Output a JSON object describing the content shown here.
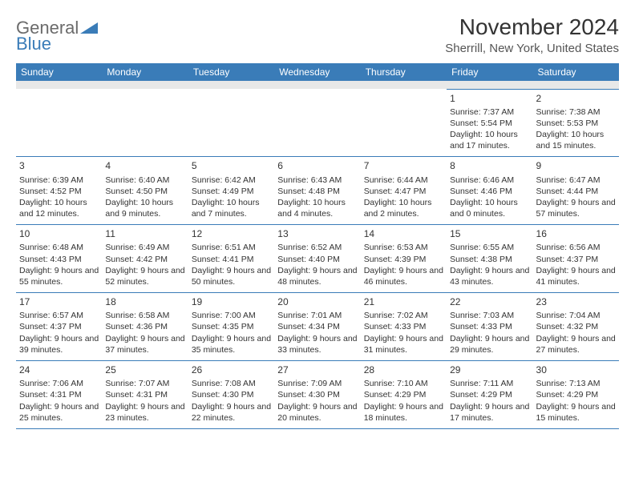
{
  "logo": {
    "word1": "General",
    "word2": "Blue"
  },
  "title": "November 2024",
  "location": "Sherrill, New York, United States",
  "colors": {
    "headerBg": "#3a7cb8",
    "headerText": "#ffffff",
    "spacerBg": "#e8e8e8",
    "text": "#333333",
    "borderColor": "#3a7cb8"
  },
  "dayHeaders": [
    "Sunday",
    "Monday",
    "Tuesday",
    "Wednesday",
    "Thursday",
    "Friday",
    "Saturday"
  ],
  "weeks": [
    [
      null,
      null,
      null,
      null,
      null,
      {
        "n": "1",
        "sr": "Sunrise: 7:37 AM",
        "ss": "Sunset: 5:54 PM",
        "dl": "Daylight: 10 hours and 17 minutes."
      },
      {
        "n": "2",
        "sr": "Sunrise: 7:38 AM",
        "ss": "Sunset: 5:53 PM",
        "dl": "Daylight: 10 hours and 15 minutes."
      }
    ],
    [
      {
        "n": "3",
        "sr": "Sunrise: 6:39 AM",
        "ss": "Sunset: 4:52 PM",
        "dl": "Daylight: 10 hours and 12 minutes."
      },
      {
        "n": "4",
        "sr": "Sunrise: 6:40 AM",
        "ss": "Sunset: 4:50 PM",
        "dl": "Daylight: 10 hours and 9 minutes."
      },
      {
        "n": "5",
        "sr": "Sunrise: 6:42 AM",
        "ss": "Sunset: 4:49 PM",
        "dl": "Daylight: 10 hours and 7 minutes."
      },
      {
        "n": "6",
        "sr": "Sunrise: 6:43 AM",
        "ss": "Sunset: 4:48 PM",
        "dl": "Daylight: 10 hours and 4 minutes."
      },
      {
        "n": "7",
        "sr": "Sunrise: 6:44 AM",
        "ss": "Sunset: 4:47 PM",
        "dl": "Daylight: 10 hours and 2 minutes."
      },
      {
        "n": "8",
        "sr": "Sunrise: 6:46 AM",
        "ss": "Sunset: 4:46 PM",
        "dl": "Daylight: 10 hours and 0 minutes."
      },
      {
        "n": "9",
        "sr": "Sunrise: 6:47 AM",
        "ss": "Sunset: 4:44 PM",
        "dl": "Daylight: 9 hours and 57 minutes."
      }
    ],
    [
      {
        "n": "10",
        "sr": "Sunrise: 6:48 AM",
        "ss": "Sunset: 4:43 PM",
        "dl": "Daylight: 9 hours and 55 minutes."
      },
      {
        "n": "11",
        "sr": "Sunrise: 6:49 AM",
        "ss": "Sunset: 4:42 PM",
        "dl": "Daylight: 9 hours and 52 minutes."
      },
      {
        "n": "12",
        "sr": "Sunrise: 6:51 AM",
        "ss": "Sunset: 4:41 PM",
        "dl": "Daylight: 9 hours and 50 minutes."
      },
      {
        "n": "13",
        "sr": "Sunrise: 6:52 AM",
        "ss": "Sunset: 4:40 PM",
        "dl": "Daylight: 9 hours and 48 minutes."
      },
      {
        "n": "14",
        "sr": "Sunrise: 6:53 AM",
        "ss": "Sunset: 4:39 PM",
        "dl": "Daylight: 9 hours and 46 minutes."
      },
      {
        "n": "15",
        "sr": "Sunrise: 6:55 AM",
        "ss": "Sunset: 4:38 PM",
        "dl": "Daylight: 9 hours and 43 minutes."
      },
      {
        "n": "16",
        "sr": "Sunrise: 6:56 AM",
        "ss": "Sunset: 4:37 PM",
        "dl": "Daylight: 9 hours and 41 minutes."
      }
    ],
    [
      {
        "n": "17",
        "sr": "Sunrise: 6:57 AM",
        "ss": "Sunset: 4:37 PM",
        "dl": "Daylight: 9 hours and 39 minutes."
      },
      {
        "n": "18",
        "sr": "Sunrise: 6:58 AM",
        "ss": "Sunset: 4:36 PM",
        "dl": "Daylight: 9 hours and 37 minutes."
      },
      {
        "n": "19",
        "sr": "Sunrise: 7:00 AM",
        "ss": "Sunset: 4:35 PM",
        "dl": "Daylight: 9 hours and 35 minutes."
      },
      {
        "n": "20",
        "sr": "Sunrise: 7:01 AM",
        "ss": "Sunset: 4:34 PM",
        "dl": "Daylight: 9 hours and 33 minutes."
      },
      {
        "n": "21",
        "sr": "Sunrise: 7:02 AM",
        "ss": "Sunset: 4:33 PM",
        "dl": "Daylight: 9 hours and 31 minutes."
      },
      {
        "n": "22",
        "sr": "Sunrise: 7:03 AM",
        "ss": "Sunset: 4:33 PM",
        "dl": "Daylight: 9 hours and 29 minutes."
      },
      {
        "n": "23",
        "sr": "Sunrise: 7:04 AM",
        "ss": "Sunset: 4:32 PM",
        "dl": "Daylight: 9 hours and 27 minutes."
      }
    ],
    [
      {
        "n": "24",
        "sr": "Sunrise: 7:06 AM",
        "ss": "Sunset: 4:31 PM",
        "dl": "Daylight: 9 hours and 25 minutes."
      },
      {
        "n": "25",
        "sr": "Sunrise: 7:07 AM",
        "ss": "Sunset: 4:31 PM",
        "dl": "Daylight: 9 hours and 23 minutes."
      },
      {
        "n": "26",
        "sr": "Sunrise: 7:08 AM",
        "ss": "Sunset: 4:30 PM",
        "dl": "Daylight: 9 hours and 22 minutes."
      },
      {
        "n": "27",
        "sr": "Sunrise: 7:09 AM",
        "ss": "Sunset: 4:30 PM",
        "dl": "Daylight: 9 hours and 20 minutes."
      },
      {
        "n": "28",
        "sr": "Sunrise: 7:10 AM",
        "ss": "Sunset: 4:29 PM",
        "dl": "Daylight: 9 hours and 18 minutes."
      },
      {
        "n": "29",
        "sr": "Sunrise: 7:11 AM",
        "ss": "Sunset: 4:29 PM",
        "dl": "Daylight: 9 hours and 17 minutes."
      },
      {
        "n": "30",
        "sr": "Sunrise: 7:13 AM",
        "ss": "Sunset: 4:29 PM",
        "dl": "Daylight: 9 hours and 15 minutes."
      }
    ]
  ]
}
